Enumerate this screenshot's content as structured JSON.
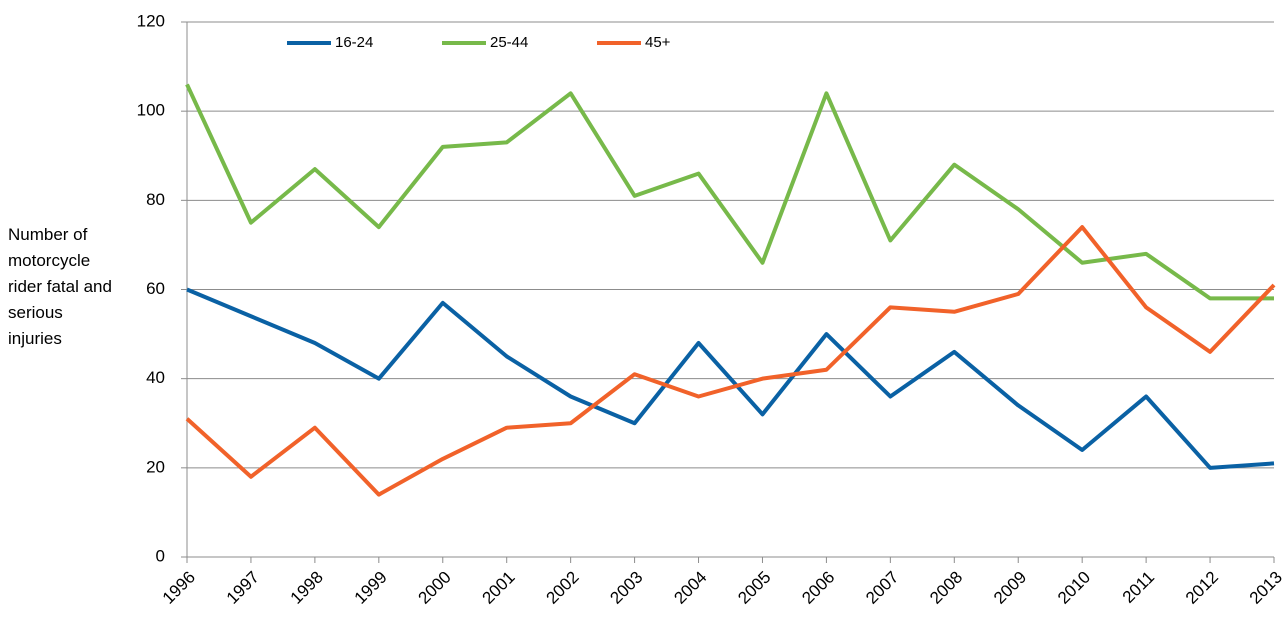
{
  "chart_data": {
    "type": "line",
    "y_label": "Number of motorcycle rider fatal and serious injuries",
    "x": [
      1996,
      1997,
      1998,
      1999,
      2000,
      2001,
      2002,
      2003,
      2004,
      2005,
      2006,
      2007,
      2008,
      2009,
      2010,
      2011,
      2012,
      2013
    ],
    "xlim": [
      1996,
      2013
    ],
    "xticks": [
      1996,
      1997,
      1998,
      1999,
      2000,
      2001,
      2002,
      2003,
      2004,
      2005,
      2006,
      2007,
      2008,
      2009,
      2010,
      2011,
      2012,
      2013
    ],
    "ylim": [
      0,
      120
    ],
    "yticks": [
      0,
      20,
      40,
      60,
      80,
      100,
      120
    ],
    "grid": true,
    "legend": "top",
    "series": [
      {
        "name": "16-24",
        "color": "#0a61a4",
        "values": [
          60,
          54,
          48,
          40,
          57,
          45,
          36,
          30,
          48,
          32,
          50,
          36,
          46,
          34,
          24,
          36,
          20,
          21
        ]
      },
      {
        "name": "25-44",
        "color": "#77b94a",
        "values": [
          106,
          75,
          87,
          74,
          92,
          93,
          104,
          81,
          86,
          66,
          104,
          71,
          88,
          78,
          66,
          68,
          58,
          58
        ]
      },
      {
        "name": "45+",
        "color": "#f1622a",
        "values": [
          31,
          18,
          29,
          14,
          22,
          29,
          30,
          41,
          36,
          40,
          42,
          56,
          55,
          59,
          74,
          56,
          46,
          61
        ]
      }
    ]
  }
}
